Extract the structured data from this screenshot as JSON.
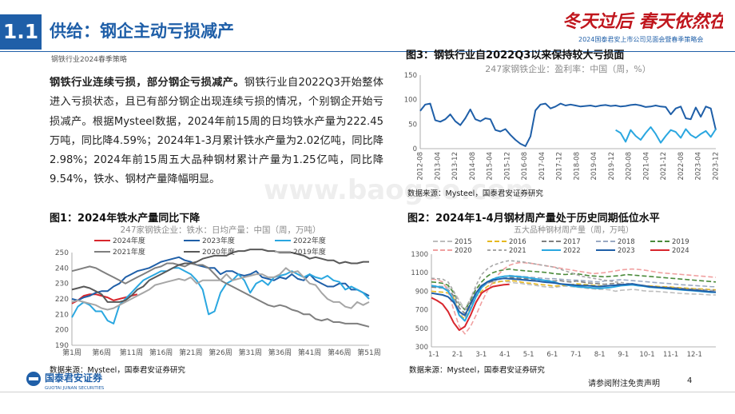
{
  "header": {
    "section_number": "1.1",
    "title": "供给：钢企主动亏损减产",
    "subtitle": "钢铁行业2024春季策略",
    "slogan": "冬天过后 春天依然在",
    "slogan_sub": "2024国泰君安上市公司见面会暨春季策略会"
  },
  "body": {
    "lead": "钢铁行业连续亏损，部分钢企亏损减产。",
    "text": "钢铁行业自2022Q3开始整体进入亏损状态，且已有部分钢企出现连续亏损的情况，个别钢企开始亏损减产。根据Mysteel数据，2024年前15周的日均铁水产量为222.45万吨，同比降4.59%；2024年1-3月累计铁水产量为2.02亿吨，同比降2.98%；2024年前15周五大品种钢材累计产量为1.25亿吨，同比降9.54%，铁水、钢材产量降幅明显。"
  },
  "footer": {
    "note": "请参阅附注免责声明",
    "page": "4",
    "logo_cn": "国泰君安证券",
    "logo_en": "GUOTAI JUNAN SECURITIES"
  },
  "watermark": "www.baogao.com",
  "colors": {
    "brand": "#1f5fa8",
    "slogan": "#c0161d"
  },
  "chart_data": [
    {
      "id": "fig3",
      "type": "line",
      "fig_title": "图3：钢铁行业自2022Q3以来保持较大亏损面",
      "title": "247家钢铁企业：盈利率：中国（周，%）",
      "source": "数据来源：Mysteel，国泰君安证券研究",
      "ylim": [
        0,
        150
      ],
      "yticks": [
        0,
        50,
        100,
        150
      ],
      "xticks": [
        "2012-08",
        "2013-04",
        "2013-12",
        "2014-08",
        "2015-04",
        "2015-12",
        "2016-08",
        "2017-04",
        "2017-12",
        "2018-08",
        "2019-04",
        "2019-12",
        "2020-08",
        "2021-04",
        "2021-12",
        "2022-08",
        "2023-04",
        "2023-12"
      ],
      "series": [
        {
          "color": "#1f5fa8",
          "values": [
            77,
            90,
            92,
            58,
            55,
            60,
            70,
            56,
            48,
            62,
            80,
            60,
            56,
            62,
            60,
            38,
            35,
            40,
            28,
            18,
            10,
            5,
            25,
            78,
            90,
            92,
            82,
            86,
            92,
            88,
            90,
            88,
            86,
            87,
            88,
            86,
            88,
            89,
            87,
            88,
            86,
            87,
            89,
            90,
            88,
            85,
            86,
            88,
            86,
            85,
            70,
            82,
            86,
            62,
            60,
            84,
            65,
            86,
            82,
            38
          ]
        },
        {
          "color": "#2aa7e0",
          "values": [
            38,
            32,
            14,
            38,
            26,
            18,
            32,
            44,
            30,
            12,
            26,
            38,
            34,
            22,
            40,
            28,
            22,
            30,
            36,
            24,
            40
          ]
        }
      ]
    },
    {
      "id": "fig1",
      "type": "line",
      "fig_title": "图1：2024年铁水产量同比下降",
      "title": "247家钢铁企业：铁水：日均产量：中国（周，万吨）",
      "source": "数据来源：Mysteel，国泰君安证券研究",
      "ylim": [
        190,
        250
      ],
      "yticks": [
        190,
        200,
        210,
        220,
        230,
        240,
        250
      ],
      "xticks": [
        "第1周",
        "第6周",
        "第11周",
        "第16周",
        "第21周",
        "第26周",
        "第31周",
        "第36周",
        "第41周",
        "第46周",
        "第51周"
      ],
      "series": [
        {
          "name": "2024年度",
          "color": "#d8262d",
          "values": [
            217,
            219,
            222,
            223,
            223,
            222,
            221,
            219,
            220,
            221,
            222,
            223
          ]
        },
        {
          "name": "2023年度",
          "color": "#1f5fa8",
          "values": [
            220,
            219,
            221,
            222,
            224,
            225,
            225,
            228,
            230,
            234,
            236,
            238,
            239,
            240,
            242,
            244,
            245,
            246,
            247,
            245,
            244,
            242,
            241,
            240,
            240,
            236,
            238,
            238,
            236,
            235,
            236,
            238,
            234,
            233,
            232,
            234,
            233,
            236,
            233,
            232,
            236,
            232,
            230,
            228,
            228,
            230,
            230,
            226,
            226,
            224,
            222
          ]
        },
        {
          "name": "2022年度",
          "color": "#2aa7e0",
          "values": [
            208,
            215,
            218,
            216,
            212,
            212,
            206,
            204,
            216,
            220,
            224,
            228,
            232,
            234,
            236,
            238,
            238,
            240,
            240,
            238,
            236,
            232,
            226,
            210,
            212,
            224,
            230,
            232,
            236,
            232,
            224,
            230,
            232,
            229,
            234,
            235,
            236,
            238,
            236,
            234,
            236,
            234,
            233,
            235,
            232,
            231,
            226,
            228,
            226,
            224,
            220
          ]
        },
        {
          "name": "2021年度",
          "color": "#7f7f7f",
          "values": [
            238,
            239,
            240,
            241,
            240,
            238,
            236,
            234,
            232,
            230,
            232,
            234,
            236,
            238,
            240,
            241,
            243,
            243,
            242,
            241,
            243,
            242,
            242,
            240,
            236,
            232,
            230,
            228,
            226,
            224,
            222,
            220,
            218,
            216,
            215,
            216,
            215,
            213,
            212,
            210,
            210,
            207,
            206,
            207,
            205,
            205,
            204,
            204,
            204,
            203,
            202
          ]
        },
        {
          "name": "2020年度",
          "color": "#595959",
          "values": [
            226,
            227,
            228,
            227,
            225,
            223,
            218,
            218,
            218,
            219,
            222,
            226,
            228,
            232,
            234,
            236,
            238,
            240,
            242,
            243,
            243,
            244,
            246,
            247,
            248,
            248,
            248,
            250,
            251,
            251,
            252,
            252,
            252,
            251,
            251,
            250,
            250,
            250,
            249,
            248,
            246,
            247,
            246,
            245,
            245,
            243,
            244,
            243,
            243,
            244,
            244
          ]
        },
        {
          "name": "2019年度",
          "color": "#a6a6a6",
          "values": [
            218,
            219,
            218,
            217,
            216,
            214,
            213,
            214,
            216,
            218,
            220,
            222,
            224,
            226,
            229,
            230,
            231,
            232,
            233,
            232,
            234,
            230,
            232,
            232,
            232,
            232,
            236,
            232,
            233,
            234,
            235,
            236,
            236,
            234,
            234,
            236,
            240,
            237,
            238,
            234,
            230,
            229,
            224,
            220,
            218,
            218,
            215,
            214,
            218,
            216,
            218
          ]
        }
      ]
    },
    {
      "id": "fig2",
      "type": "line",
      "fig_title": "图2：2024年1-4月钢材周产量处于历史同期低位水平",
      "title": "五大品种钢材周产量（周，万吨）",
      "source": "数据来源：Mysteel，国泰君安证券研究",
      "ylim": [
        300,
        1300
      ],
      "yticks": [
        300,
        500,
        700,
        900,
        1100,
        1300
      ],
      "xticks": [
        "1-1",
        "2-1",
        "3-1",
        "4-1",
        "5-1",
        "6-1",
        "7-1",
        "8-1",
        "9-1",
        "10-1",
        "11-1",
        "12-1"
      ],
      "series": [
        {
          "name": "2015",
          "color": "#bdbdbd",
          "dash": "6 3",
          "values": [
            960,
            955,
            950,
            945,
            900,
            800,
            700,
            820,
            930,
            960,
            985,
            1000,
            1010,
            1005,
            1000,
            990,
            985,
            975,
            970,
            960,
            950,
            945,
            940,
            950,
            955,
            950,
            945,
            940,
            930,
            925,
            920,
            920,
            915,
            900,
            910,
            915,
            920,
            915,
            905,
            900,
            900,
            895,
            890,
            885,
            880,
            875,
            872,
            870,
            868,
            865,
            860,
            860
          ]
        },
        {
          "name": "2016",
          "color": "#e6b820",
          "dash": "6 3",
          "values": [
            900,
            895,
            890,
            880,
            830,
            650,
            600,
            720,
            840,
            900,
            950,
            985,
            1000,
            1010,
            1015,
            1010,
            1000,
            990,
            985,
            975,
            970,
            965,
            955,
            960,
            965,
            970,
            980,
            975,
            970,
            965,
            960,
            955,
            960,
            965,
            970,
            972,
            968,
            965,
            962,
            958,
            955,
            950,
            948,
            945,
            940,
            936,
            932,
            928,
            926,
            922,
            918,
            915
          ]
        },
        {
          "name": "2017",
          "color": "#7f7f7f",
          "dash": "6 3",
          "values": [
            945,
            940,
            935,
            920,
            850,
            720,
            660,
            780,
            880,
            940,
            985,
            1010,
            1030,
            1040,
            1050,
            1045,
            1040,
            1035,
            1030,
            1025,
            1020,
            1015,
            1010,
            1015,
            1005,
            1000,
            1010,
            1000,
            990,
            985,
            980,
            975,
            980,
            985,
            975,
            970,
            968,
            965,
            960,
            955,
            950,
            945,
            943,
            940,
            935,
            930,
            925,
            922,
            918,
            915,
            910,
            908
          ]
        },
        {
          "name": "2018",
          "color": "#9aa9c2",
          "dash": "6 3",
          "values": [
            960,
            955,
            950,
            920,
            820,
            680,
            620,
            750,
            860,
            940,
            990,
            1030,
            1050,
            1060,
            1070,
            1065,
            1060,
            1055,
            1050,
            1045,
            1040,
            1035,
            1035,
            1030,
            1025,
            1020,
            1020,
            1015,
            1010,
            1005,
            1000,
            1010,
            1015,
            1020,
            1025,
            1020,
            1015,
            1010,
            1005,
            1000,
            995,
            990,
            985,
            980,
            975,
            970,
            966,
            962,
            958,
            955,
            950,
            948
          ]
        },
        {
          "name": "2019",
          "color": "#4a8a3a",
          "dash": "6 3",
          "values": [
            1000,
            995,
            985,
            965,
            880,
            760,
            700,
            800,
            920,
            1000,
            1060,
            1100,
            1120,
            1130,
            1140,
            1130,
            1125,
            1120,
            1115,
            1110,
            1105,
            1100,
            1090,
            1085,
            1080,
            1085,
            1090,
            1080,
            1070,
            1065,
            1060,
            1055,
            1060,
            1065,
            1070,
            1080,
            1075,
            1070,
            1065,
            1060,
            1055,
            1050,
            1045,
            1040,
            1035,
            1030,
            1025,
            1020,
            1015,
            1010,
            1005,
            1000
          ]
        },
        {
          "name": "2020",
          "color": "#f0a0a0",
          "dash": "6 3",
          "values": [
            1030,
            1025,
            1000,
            900,
            700,
            520,
            440,
            520,
            640,
            780,
            900,
            1000,
            1080,
            1140,
            1180,
            1200,
            1210,
            1205,
            1200,
            1190,
            1180,
            1170,
            1160,
            1150,
            1140,
            1130,
            1120,
            1110,
            1100,
            1090,
            1095,
            1100,
            1110,
            1120,
            1130,
            1135,
            1140,
            1135,
            1130,
            1120,
            1110,
            1100,
            1095,
            1090,
            1085,
            1080,
            1075,
            1070,
            1065,
            1060,
            1055,
            1050
          ]
        },
        {
          "name": "2021",
          "color": "#a6a6a6",
          "dash": "4 3",
          "values": [
            1040,
            1035,
            1030,
            1000,
            900,
            760,
            700,
            820,
            960,
            1080,
            1140,
            1180,
            1200,
            1220,
            1230,
            1225,
            1220,
            1210,
            1200,
            1190,
            1180,
            1170,
            1160,
            1140,
            1120,
            1100,
            1080,
            1060,
            1050,
            1040,
            1030,
            1020,
            1010,
            1000,
            995,
            985,
            980,
            970,
            960,
            950,
            945,
            940,
            935,
            930,
            925,
            920,
            918,
            916,
            914,
            912,
            910,
            908
          ]
        },
        {
          "name": "2022",
          "color": "#2aa7e0",
          "dash": "",
          "values": [
            960,
            950,
            940,
            900,
            800,
            640,
            580,
            700,
            840,
            940,
            1000,
            1030,
            1050,
            1060,
            1065,
            1060,
            1055,
            1050,
            1040,
            1030,
            1020,
            1010,
            1000,
            980,
            970,
            960,
            950,
            945,
            940,
            935,
            930,
            935,
            940,
            950,
            960,
            965,
            970,
            960,
            955,
            945,
            940,
            935,
            930,
            925,
            920,
            915,
            910,
            905,
            900,
            895,
            890,
            888
          ]
        },
        {
          "name": "2023",
          "color": "#1f5fa8",
          "dash": "",
          "values": [
            880,
            870,
            860,
            840,
            780,
            680,
            640,
            760,
            880,
            960,
            1000,
            1020,
            1030,
            1040,
            1035,
            1030,
            1025,
            1020,
            1015,
            1010,
            1000,
            995,
            990,
            980,
            975,
            970,
            965,
            960,
            960,
            955,
            950,
            955,
            960,
            965,
            970,
            975,
            980,
            970,
            960,
            950,
            945,
            940,
            935,
            930,
            925,
            920,
            915,
            910,
            905,
            900,
            895,
            890
          ]
        },
        {
          "name": "2024",
          "color": "#d8262d",
          "dash": "",
          "values": [
            830,
            800,
            760,
            680,
            560,
            480,
            520,
            640,
            780,
            880,
            920,
            950,
            960,
            970,
            975
          ]
        }
      ]
    }
  ]
}
